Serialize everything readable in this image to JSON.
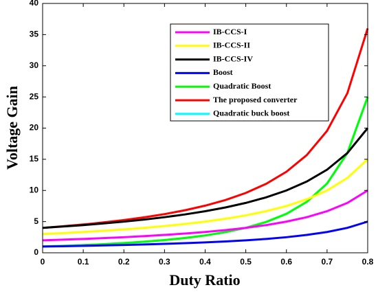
{
  "chart_data": {
    "type": "line",
    "xlabel": "Duty Ratio",
    "ylabel": "Voltage Gain",
    "x": [
      0,
      0.05,
      0.1,
      0.15,
      0.2,
      0.25,
      0.3,
      0.35,
      0.4,
      0.45,
      0.5,
      0.55,
      0.6,
      0.65,
      0.7,
      0.75,
      0.8
    ],
    "series": [
      {
        "name": "IB-CCS-I",
        "color": "#ff00ff",
        "values": [
          2,
          2.11,
          2.22,
          2.35,
          2.5,
          2.67,
          2.86,
          3.08,
          3.33,
          3.64,
          4,
          4.44,
          5,
          5.71,
          6.67,
          8,
          10
        ]
      },
      {
        "name": "IB-CCS-II",
        "color": "#ffff00",
        "values": [
          3,
          3.16,
          3.33,
          3.53,
          3.75,
          4,
          4.29,
          4.62,
          5,
          5.45,
          6,
          6.67,
          7.5,
          8.57,
          10,
          12,
          15
        ]
      },
      {
        "name": "IB-CCS-IV",
        "color": "#000000",
        "values": [
          4,
          4.21,
          4.44,
          4.71,
          5,
          5.33,
          5.71,
          6.15,
          6.67,
          7.27,
          8,
          8.89,
          10,
          11.43,
          13.33,
          16,
          20
        ]
      },
      {
        "name": "Boost",
        "color": "#0000ff",
        "values": [
          1,
          1.05,
          1.11,
          1.18,
          1.25,
          1.33,
          1.43,
          1.54,
          1.67,
          1.82,
          2,
          2.22,
          2.5,
          2.86,
          3.33,
          4,
          5
        ]
      },
      {
        "name": "Quadratic Boost",
        "color": "#00ff00",
        "values": [
          1,
          1.11,
          1.23,
          1.38,
          1.56,
          1.78,
          2.04,
          2.37,
          2.78,
          3.31,
          4,
          4.94,
          6.25,
          8.16,
          11.11,
          16,
          25
        ]
      },
      {
        "name": "The proposed converter",
        "color": "#ff0000",
        "values": [
          4,
          4.25,
          4.54,
          4.87,
          5.25,
          5.69,
          6.2,
          6.82,
          7.56,
          8.46,
          9.6,
          11.06,
          13,
          15.67,
          19.56,
          25.6,
          36
        ]
      },
      {
        "name": "Quadratic buck boost",
        "color": "#00ffff",
        "values": [
          1,
          1.11,
          1.23,
          1.38,
          1.56,
          1.78,
          2.04,
          2.37,
          2.78,
          3.31,
          4,
          4.94,
          6.25,
          8.16,
          11.11,
          16,
          25
        ]
      }
    ],
    "xlim": [
      0,
      0.8
    ],
    "xticks": [
      0,
      0.1,
      0.2,
      0.3,
      0.4,
      0.5,
      0.6,
      0.7,
      0.8
    ],
    "ylim": [
      0,
      40
    ],
    "yticks": [
      0,
      5,
      10,
      15,
      20,
      25,
      30,
      35,
      40
    ],
    "grid": false
  }
}
